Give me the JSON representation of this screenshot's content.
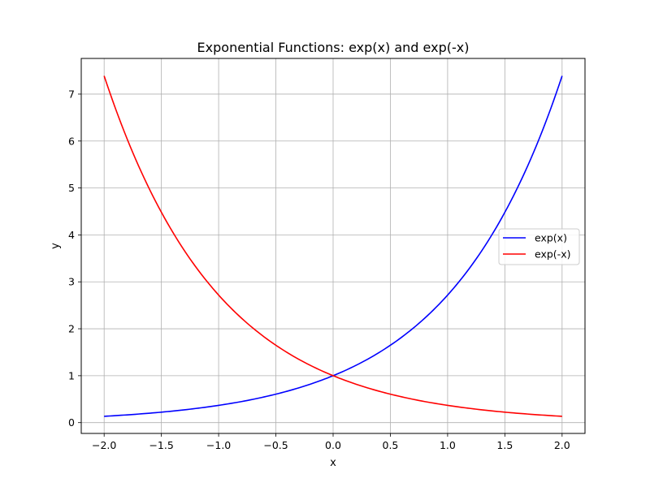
{
  "chart_data": {
    "type": "line",
    "title": "Exponential Functions: exp(x) and exp(-x)",
    "xlabel": "x",
    "ylabel": "y",
    "xlim": [
      -2.2,
      2.2
    ],
    "ylim": [
      -0.23,
      7.76
    ],
    "xticks": [
      -2.0,
      -1.5,
      -1.0,
      -0.5,
      0.0,
      0.5,
      1.0,
      1.5,
      2.0
    ],
    "xtick_labels": [
      "−2.0",
      "−1.5",
      "−1.0",
      "−0.5",
      "0.0",
      "0.5",
      "1.0",
      "1.5",
      "2.0"
    ],
    "yticks": [
      0,
      1,
      2,
      3,
      4,
      5,
      6,
      7
    ],
    "ytick_labels": [
      "0",
      "1",
      "2",
      "3",
      "4",
      "5",
      "6",
      "7"
    ],
    "grid": true,
    "legend_position": "right",
    "x": [
      -2.0,
      -1.75,
      -1.5,
      -1.25,
      -1.0,
      -0.75,
      -0.5,
      -0.25,
      0.0,
      0.25,
      0.5,
      0.75,
      1.0,
      1.25,
      1.5,
      1.75,
      2.0
    ],
    "series": [
      {
        "name": "exp(x)",
        "color": "#0000ff",
        "values": [
          0.135,
          0.174,
          0.223,
          0.287,
          0.368,
          0.472,
          0.607,
          0.779,
          1.0,
          1.284,
          1.649,
          2.117,
          2.718,
          3.49,
          4.482,
          5.755,
          7.389
        ]
      },
      {
        "name": "exp(-x)",
        "color": "#ff0000",
        "values": [
          7.389,
          5.755,
          4.482,
          3.49,
          2.718,
          2.117,
          1.649,
          1.284,
          1.0,
          0.779,
          0.607,
          0.472,
          0.368,
          0.287,
          0.223,
          0.174,
          0.135
        ]
      }
    ]
  }
}
